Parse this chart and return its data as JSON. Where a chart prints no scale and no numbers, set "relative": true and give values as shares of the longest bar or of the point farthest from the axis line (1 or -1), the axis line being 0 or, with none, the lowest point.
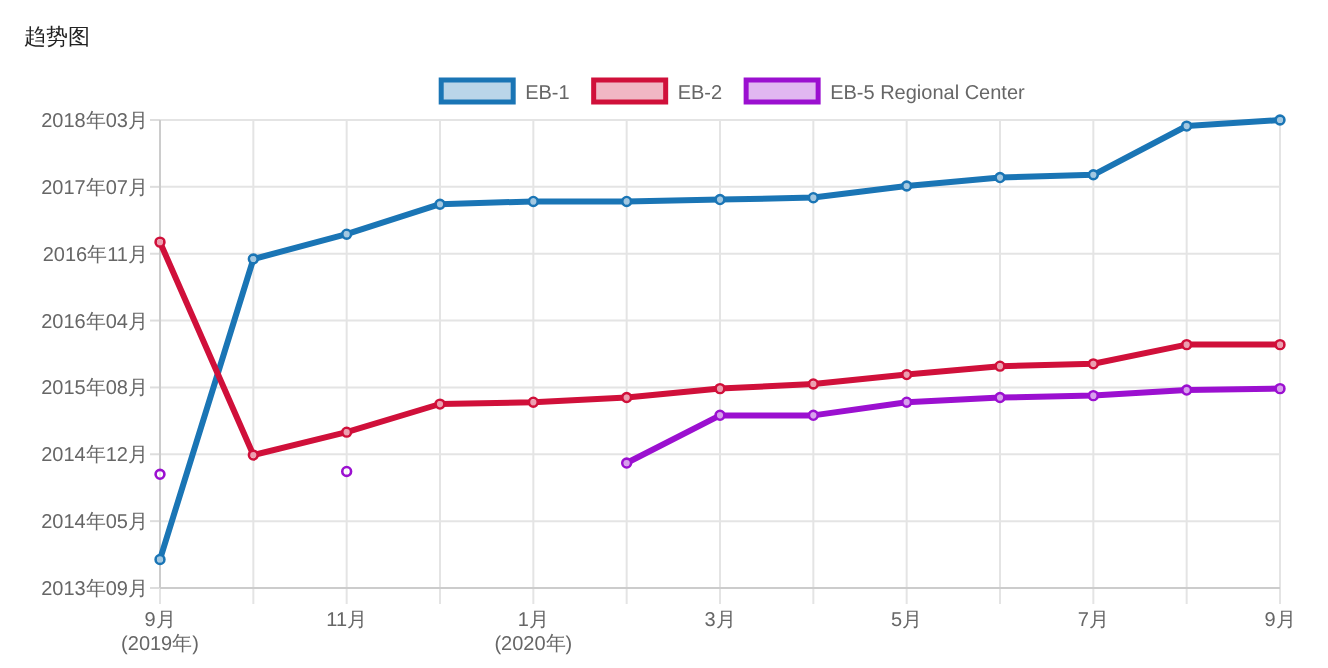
{
  "chart_data": {
    "type": "line",
    "title": "趋势图",
    "relative": true,
    "categories": [
      "9月\n(2019年)",
      null,
      "11月",
      null,
      "1月\n(2020年)",
      null,
      "3月",
      null,
      "5月",
      null,
      "7月",
      null,
      "9月"
    ],
    "series": [
      {
        "name": "EB-1",
        "color": "#1a75b5",
        "values": [
          0.061,
          0.703,
          0.756,
          0.82,
          0.826,
          0.826,
          0.83,
          0.834,
          0.859,
          0.877,
          0.883,
          0.987,
          1
        ]
      },
      {
        "name": "EB-2",
        "color": "#d0103a",
        "values": [
          0.739,
          0.284,
          0.333,
          0.393,
          0.397,
          0.407,
          0.426,
          0.436,
          0.456,
          0.474,
          0.479,
          0.52,
          0.52
        ]
      },
      {
        "name": "EB-5 Regional Center",
        "color": "#9b10d0",
        "values": [
          0.243,
          null,
          0.249,
          null,
          null,
          0.267,
          0.369,
          0.369,
          0.397,
          0.407,
          0.411,
          0.423,
          0.426
        ]
      }
    ],
    "annotations": [
      "2013年09月",
      "2014年05月",
      "2014年12月",
      "2015年08月",
      "2016年04月",
      "2016年11月",
      "2017年07月",
      "2018年03月"
    ],
    "grid": true,
    "legend": "top",
    "marker": "circle",
    "line_style": "solid"
  }
}
